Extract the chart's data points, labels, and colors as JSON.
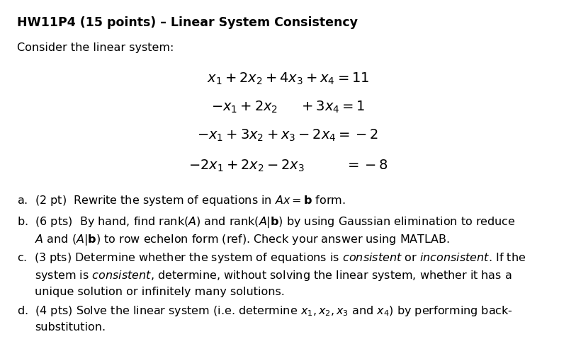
{
  "title": "HW11P4 (15 points) – Linear System Consistency",
  "intro": "Consider the linear system:",
  "bg_color": "#ffffff",
  "text_color": "#000000",
  "title_fontsize": 12.5,
  "body_fontsize": 11.5,
  "eq_fontsize": 14
}
